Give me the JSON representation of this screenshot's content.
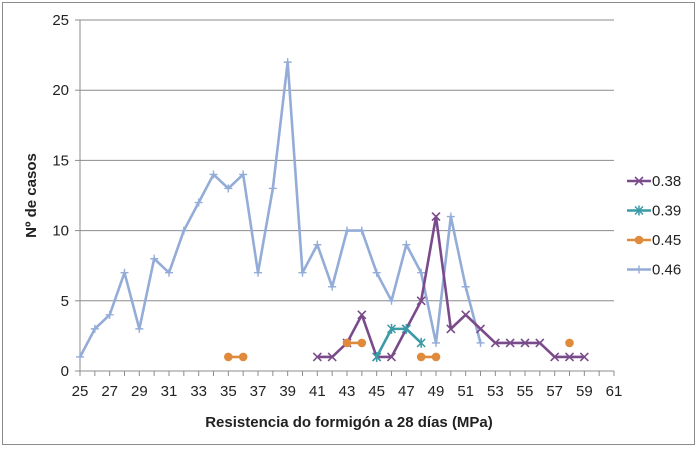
{
  "chart_data": {
    "type": "line",
    "xlabel": "Resistencia do formigón a 28 días (MPa)",
    "ylabel": "Nº de casos",
    "xlim": [
      25,
      61
    ],
    "ylim": [
      0,
      25
    ],
    "x_tick_labels": [
      "25",
      "27",
      "29",
      "31",
      "33",
      "35",
      "37",
      "39",
      "41",
      "43",
      "45",
      "47",
      "49",
      "51",
      "53",
      "55",
      "57",
      "59",
      "61"
    ],
    "y_tick_labels": [
      "0",
      "5",
      "10",
      "15",
      "20",
      "25"
    ],
    "grid": "horizontal",
    "legend_position": "right",
    "series": [
      {
        "name": "0.38",
        "color": "#7a4b8a",
        "marker": "x",
        "points": [
          [
            41,
            1
          ],
          [
            42,
            1
          ],
          [
            43,
            2
          ],
          [
            44,
            4
          ],
          [
            45,
            1
          ],
          [
            46,
            1
          ],
          [
            47,
            3
          ],
          [
            48,
            5
          ],
          [
            49,
            11
          ],
          [
            50,
            3
          ],
          [
            51,
            4
          ],
          [
            52,
            3
          ],
          [
            53,
            2
          ],
          [
            54,
            2
          ],
          [
            55,
            2
          ],
          [
            56,
            2
          ],
          [
            57,
            1
          ],
          [
            58,
            1
          ],
          [
            59,
            1
          ]
        ]
      },
      {
        "name": "0.39",
        "color": "#3a9aa5",
        "marker": "star",
        "points": [
          [
            45,
            1
          ],
          [
            46,
            3
          ],
          [
            47,
            3
          ],
          [
            48,
            2
          ]
        ]
      },
      {
        "name": "0.45",
        "color": "#e08a3c",
        "marker": "circle",
        "segments": [
          [
            [
              35,
              1
            ],
            [
              36,
              1
            ]
          ],
          [
            [
              43,
              2
            ],
            [
              44,
              2
            ]
          ],
          [
            [
              48,
              1
            ],
            [
              49,
              1
            ]
          ],
          [
            [
              58,
              2
            ]
          ]
        ]
      },
      {
        "name": "0.46",
        "color": "#94acd8",
        "marker": "plus",
        "points": [
          [
            25,
            1
          ],
          [
            26,
            3
          ],
          [
            27,
            4
          ],
          [
            28,
            7
          ],
          [
            29,
            3
          ],
          [
            30,
            8
          ],
          [
            31,
            7
          ],
          [
            32,
            10
          ],
          [
            33,
            12
          ],
          [
            34,
            14
          ],
          [
            35,
            13
          ],
          [
            36,
            14
          ],
          [
            37,
            7
          ],
          [
            38,
            13
          ],
          [
            39,
            22
          ],
          [
            40,
            7
          ],
          [
            41,
            9
          ],
          [
            42,
            6
          ],
          [
            43,
            10
          ],
          [
            44,
            10
          ],
          [
            45,
            7
          ],
          [
            46,
            5
          ],
          [
            47,
            9
          ],
          [
            48,
            7
          ],
          [
            49,
            2
          ],
          [
            50,
            11
          ],
          [
            51,
            6
          ],
          [
            52,
            2
          ]
        ]
      }
    ]
  }
}
